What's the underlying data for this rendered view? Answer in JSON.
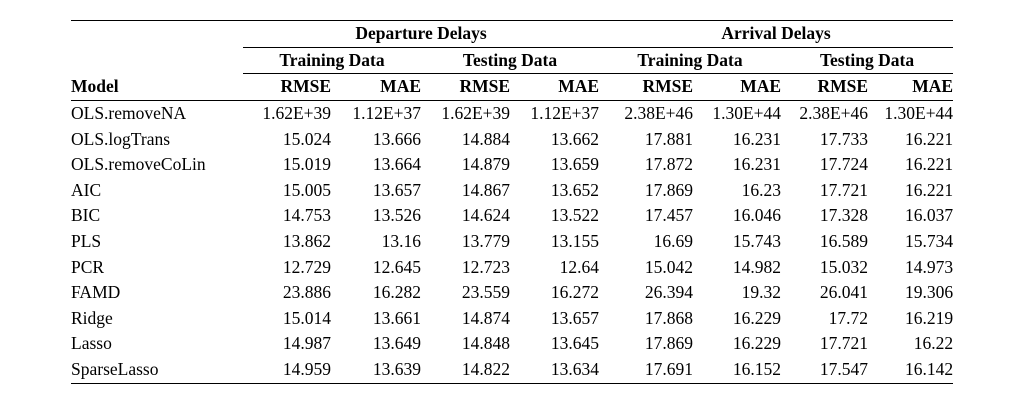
{
  "header": {
    "groups": [
      "Departure Delays",
      "Arrival Delays"
    ],
    "subgroups": [
      "Training Data",
      "Testing Data",
      "Training Data",
      "Testing Data"
    ],
    "model_label": "Model",
    "metrics": [
      "RMSE",
      "MAE",
      "RMSE",
      "MAE",
      "RMSE",
      "MAE",
      "RMSE",
      "MAE"
    ]
  },
  "rows": [
    {
      "model": "OLS.removeNA",
      "values": [
        "1.62E+39",
        "1.12E+37",
        "1.62E+39",
        "1.12E+37",
        "2.38E+46",
        "1.30E+44",
        "2.38E+46",
        "1.30E+44"
      ]
    },
    {
      "model": "OLS.logTrans",
      "values": [
        "15.024",
        "13.666",
        "14.884",
        "13.662",
        "17.881",
        "16.231",
        "17.733",
        "16.221"
      ]
    },
    {
      "model": "OLS.removeCoLin",
      "values": [
        "15.019",
        "13.664",
        "14.879",
        "13.659",
        "17.872",
        "16.231",
        "17.724",
        "16.221"
      ]
    },
    {
      "model": "AIC",
      "values": [
        "15.005",
        "13.657",
        "14.867",
        "13.652",
        "17.869",
        "16.23",
        "17.721",
        "16.221"
      ]
    },
    {
      "model": "BIC",
      "values": [
        "14.753",
        "13.526",
        "14.624",
        "13.522",
        "17.457",
        "16.046",
        "17.328",
        "16.037"
      ]
    },
    {
      "model": "PLS",
      "values": [
        "13.862",
        "13.16",
        "13.779",
        "13.155",
        "16.69",
        "15.743",
        "16.589",
        "15.734"
      ]
    },
    {
      "model": "PCR",
      "values": [
        "12.729",
        "12.645",
        "12.723",
        "12.64",
        "15.042",
        "14.982",
        "15.032",
        "14.973"
      ]
    },
    {
      "model": "FAMD",
      "values": [
        "23.886",
        "16.282",
        "23.559",
        "16.272",
        "26.394",
        "19.32",
        "26.041",
        "19.306"
      ]
    },
    {
      "model": "Ridge",
      "values": [
        "15.014",
        "13.661",
        "14.874",
        "13.657",
        "17.868",
        "16.229",
        "17.72",
        "16.219"
      ]
    },
    {
      "model": "Lasso",
      "values": [
        "14.987",
        "13.649",
        "14.848",
        "13.645",
        "17.869",
        "16.229",
        "17.721",
        "16.22"
      ]
    },
    {
      "model": "SparseLasso",
      "values": [
        "14.959",
        "13.639",
        "14.822",
        "13.634",
        "17.691",
        "16.152",
        "17.547",
        "16.142"
      ]
    }
  ]
}
